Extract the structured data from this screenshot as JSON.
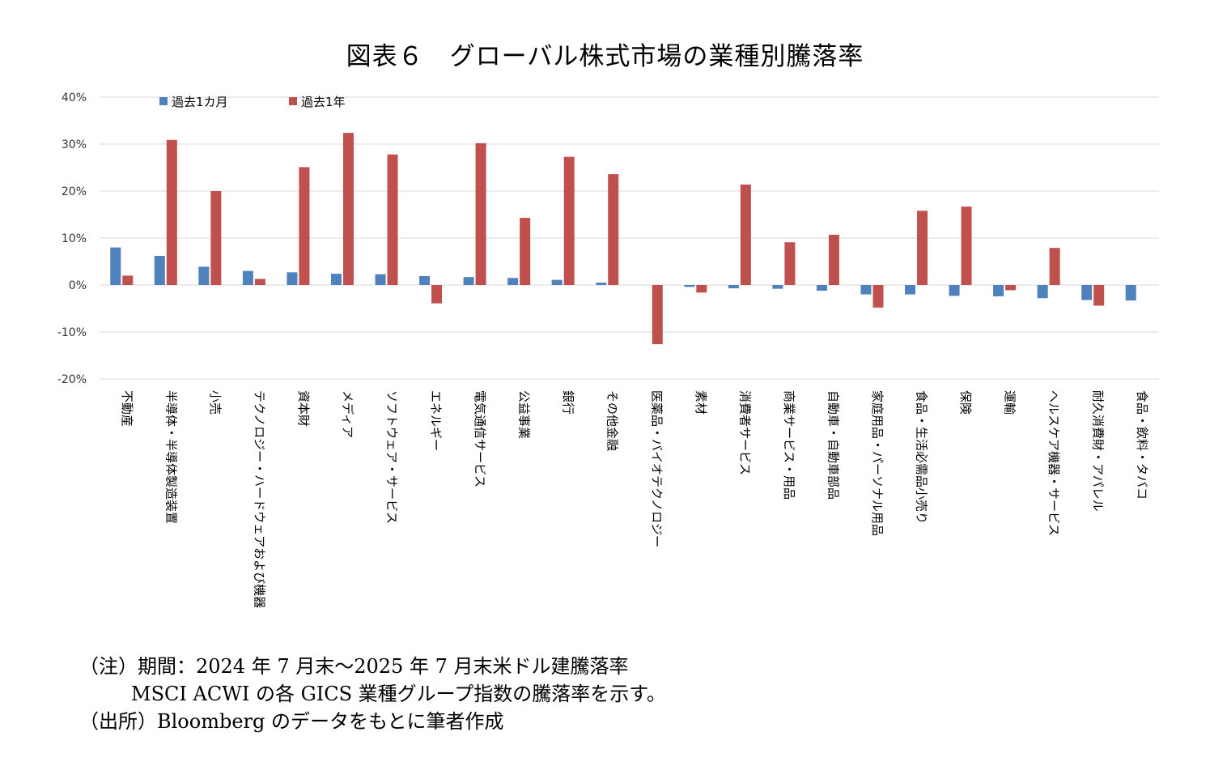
{
  "title": "図表６　グローバル株式市場の業種別騰落率",
  "notes": {
    "line1": "（注）期間：2024 年 7 月末～2025 年 7 月末米ドル建騰落率",
    "line2": "MSCI ACWI の各 GICS 業種グループ指数の騰落率を示す。",
    "line3": "（出所）Bloomberg のデータをもとに筆者作成"
  },
  "chart_data": {
    "type": "bar",
    "ylim": [
      -20,
      40
    ],
    "yticks": [
      40,
      30,
      20,
      10,
      0,
      -10,
      -20
    ],
    "ytick_labels": [
      "40%",
      "30%",
      "20%",
      "10%",
      "0%",
      "-10%",
      "-20%"
    ],
    "grid": true,
    "legend_position": "top-left",
    "categories": [
      "不動産",
      "半導体・半導体製造装置",
      "小売",
      "テクノロジー・ハードウェアおよび機器",
      "資本財",
      "メディア",
      "ソフトウェア・サービス",
      "エネルギー",
      "電気通信サービス",
      "公益事業",
      "銀行",
      "その他金融",
      "医薬品・バイオテクノロジー",
      "素材",
      "消費者サービス",
      "商業サービス・用品",
      "自動車・自動車部品",
      "家庭用品・パーソナル用品",
      "食品・生活必需品小売り",
      "保険",
      "運輸",
      "ヘルスケア機器・サービス",
      "耐久消費財・アパレル",
      "食品・飲料・タバコ"
    ],
    "series": [
      {
        "name": "過去1カ月",
        "color": "#4F81BD",
        "values": [
          8.0,
          6.2,
          3.9,
          3.0,
          2.7,
          2.4,
          2.3,
          1.9,
          1.7,
          1.5,
          1.1,
          0.5,
          0.0,
          -0.4,
          -0.7,
          -0.8,
          -1.2,
          -2.0,
          -2.0,
          -2.3,
          -2.4,
          -2.8,
          -3.2,
          -3.3
        ]
      },
      {
        "name": "過去1年",
        "color": "#C0504D",
        "values": [
          2.0,
          30.9,
          20.0,
          1.3,
          25.1,
          32.4,
          27.8,
          -3.9,
          30.2,
          14.3,
          27.3,
          23.6,
          -12.6,
          -1.6,
          21.4,
          9.1,
          10.7,
          -4.8,
          15.8,
          16.7,
          -1.1,
          7.9,
          -4.4,
          0.0
        ]
      }
    ]
  }
}
